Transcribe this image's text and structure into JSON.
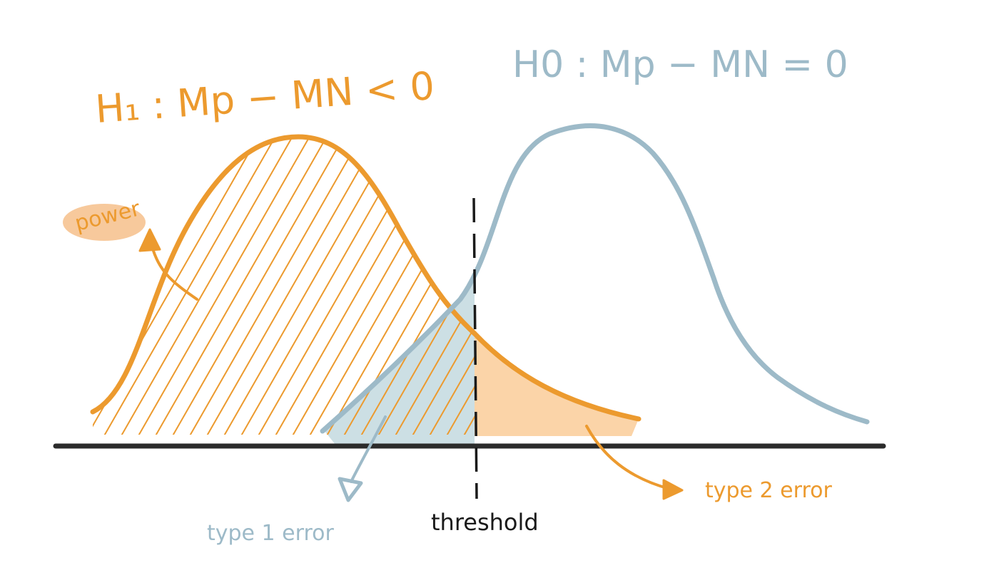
{
  "colors": {
    "h1": "#ec9a2e",
    "h0": "#9dbac8",
    "type2_fill": "#fbcf9f",
    "type1_fill": "#c9dde3",
    "power_highlight": "#f6c08b",
    "axis": "#2b2b2b",
    "threshold": "#1a1a1a"
  },
  "labels": {
    "h1": "H₁ : Mp − MN < 0",
    "h0": "H0 : Mp − MN = 0",
    "power": "power",
    "type1": "type 1 error",
    "type2": "type 2 error",
    "threshold": "threshold"
  },
  "icons": {
    "power_arrow": "curved-arrow-up",
    "type1_arrow": "curved-arrow-down-left",
    "type2_arrow": "curved-arrow-down-right"
  }
}
